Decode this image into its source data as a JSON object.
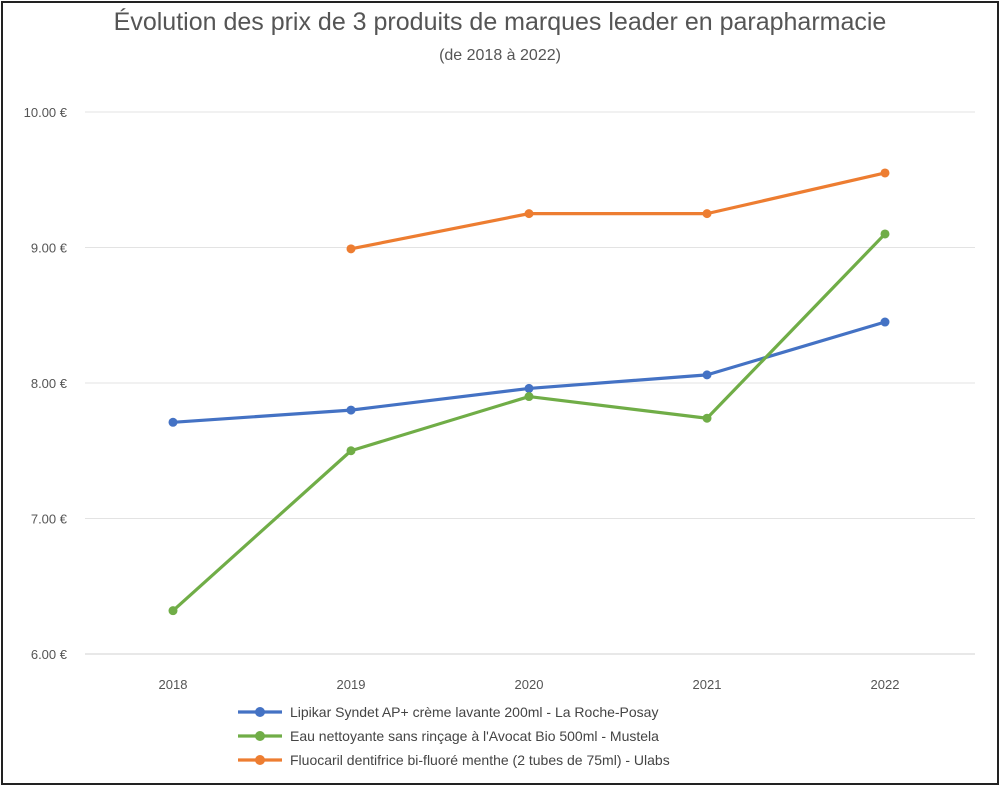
{
  "chart_data": {
    "type": "line",
    "title": "Évolution des prix de 3 produits de marques leader en parapharmacie",
    "subtitle": "(de 2018 à 2022)",
    "categories": [
      "2018",
      "2019",
      "2020",
      "2021",
      "2022"
    ],
    "y_ticks": [
      "6.00 €",
      "7.00 €",
      "8.00 €",
      "9.00 €",
      "10.00 €"
    ],
    "ylim": [
      6,
      10
    ],
    "grid": true,
    "legend_position": "bottom",
    "series": [
      {
        "name": "Lipikar Syndet AP+ crème lavante 200ml - La Roche-Posay",
        "color": "#4472C4",
        "values": [
          7.71,
          7.8,
          7.96,
          8.06,
          8.45
        ]
      },
      {
        "name": "Eau nettoyante sans rinçage à l'Avocat Bio 500ml - Mustela",
        "color": "#70AD47",
        "values": [
          6.32,
          7.5,
          7.9,
          7.74,
          9.1
        ]
      },
      {
        "name": "Fluocaril dentifrice bi-fluoré menthe (2 tubes de 75ml) - Ulabs",
        "color": "#ED7D31",
        "values": [
          null,
          8.99,
          9.25,
          9.25,
          9.55
        ]
      }
    ]
  }
}
